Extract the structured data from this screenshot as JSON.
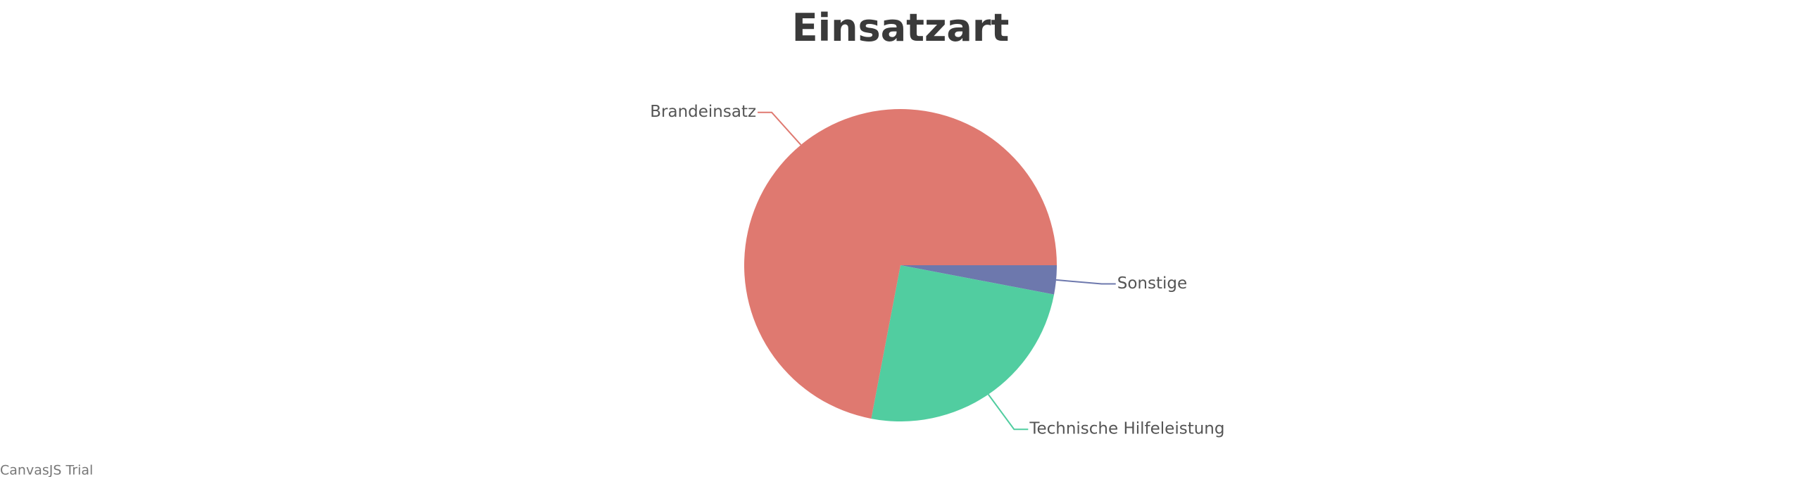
{
  "chart_data": {
    "type": "pie",
    "title": "Einsatzart",
    "categories": [
      "Sonstige",
      "Technische Hilfeleistung",
      "Brandeinsatz"
    ],
    "values": [
      3,
      25,
      72
    ],
    "colors": [
      "#6D78AD",
      "#51CDA0",
      "#DF7970"
    ],
    "watermark": "CanvasJS Trial"
  }
}
